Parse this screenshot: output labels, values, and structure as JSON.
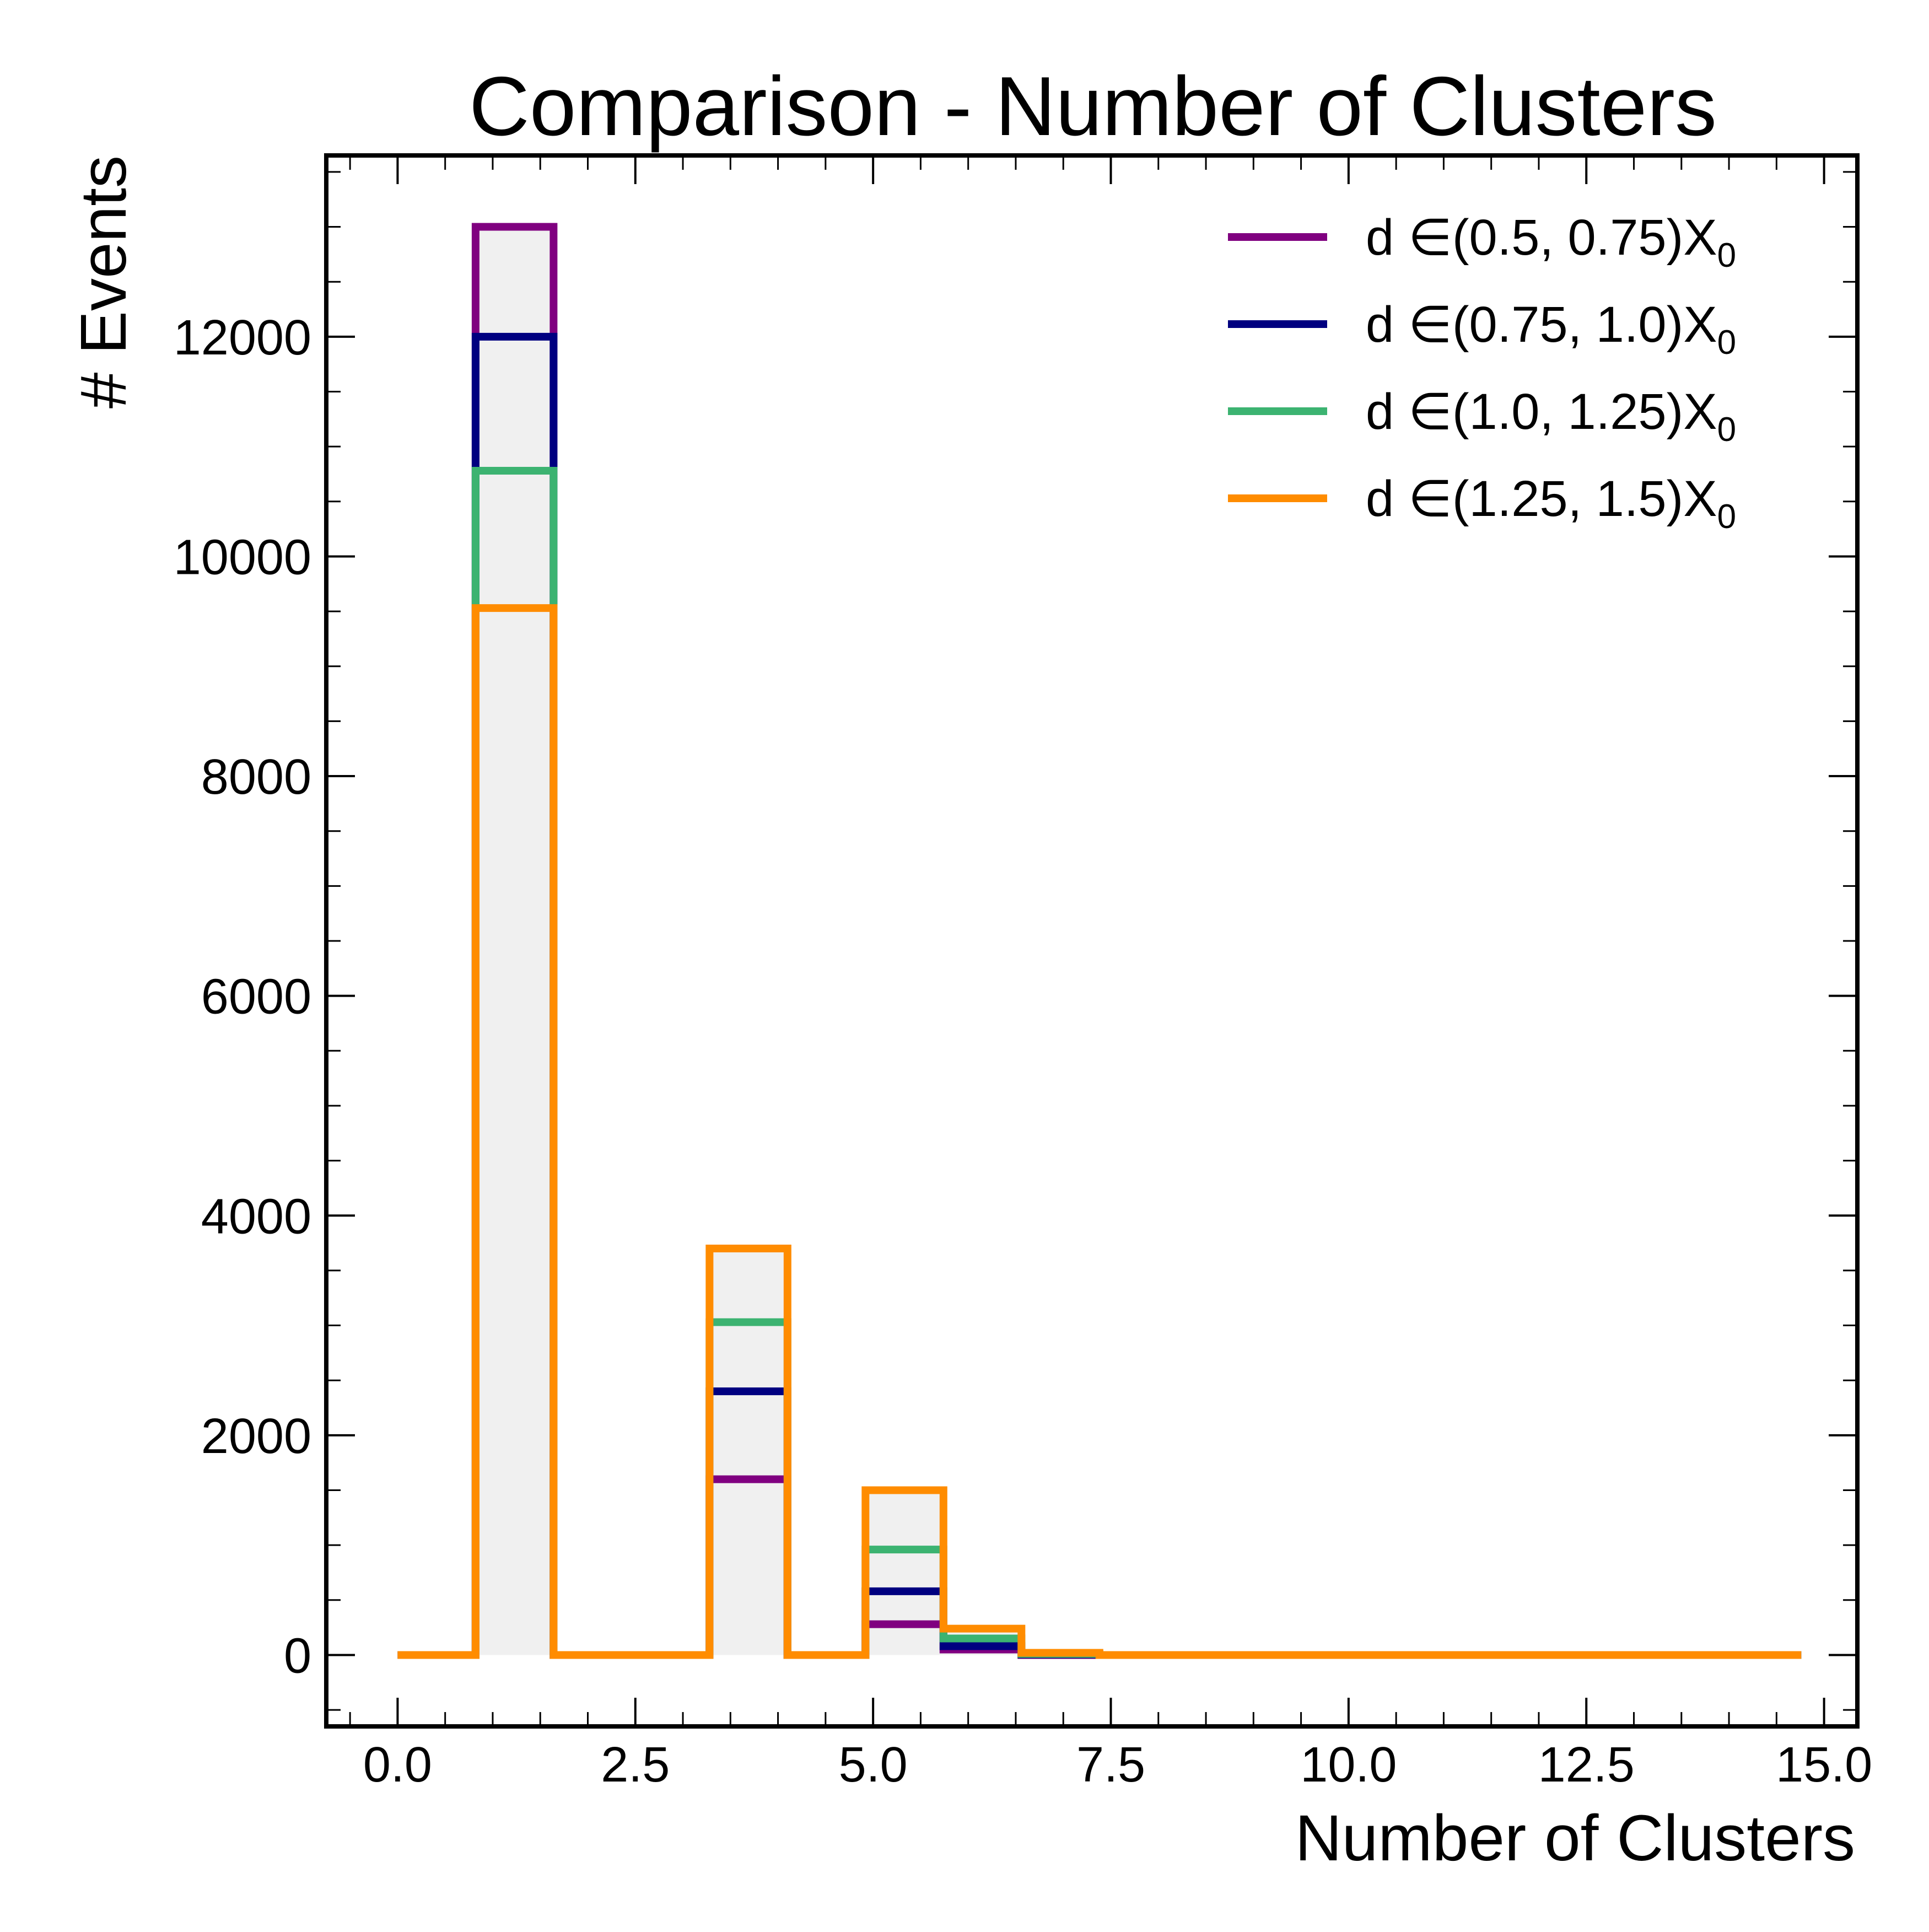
{
  "chart_data": {
    "type": "histogram-step",
    "title": "Comparison - Number of Clusters",
    "xlabel": "Number of Clusters",
    "ylabel": "# Events",
    "xlim": [
      -0.75,
      15.35
    ],
    "ylim": [
      -650,
      13650
    ],
    "x_ticks": [
      "0.0",
      "2.5",
      "5.0",
      "7.5",
      "10.0",
      "12.5",
      "15.0"
    ],
    "x_tick_values": [
      0,
      2.5,
      5,
      7.5,
      10,
      12.5,
      15
    ],
    "y_ticks": [
      "0",
      "2000",
      "4000",
      "6000",
      "8000",
      "10000",
      "12000"
    ],
    "y_tick_values": [
      0,
      2000,
      4000,
      6000,
      8000,
      10000,
      12000
    ],
    "bins_start": 0,
    "bin_width": 0.82,
    "n_bins": 18,
    "legend_position": "top-right",
    "series": [
      {
        "name_prefix": "d ∈(0.5, 0.75)X",
        "name_sub": "0",
        "color": "#800080",
        "values": [
          0,
          13000,
          0,
          0,
          1600,
          0,
          280,
          50,
          0,
          0,
          0,
          0,
          0,
          0,
          0,
          0,
          0,
          0
        ]
      },
      {
        "name_prefix": "d ∈(0.75, 1.0)X",
        "name_sub": "0",
        "color": "#000080",
        "values": [
          0,
          12000,
          0,
          0,
          2400,
          0,
          580,
          80,
          5,
          0,
          0,
          0,
          0,
          0,
          0,
          0,
          0,
          0
        ]
      },
      {
        "name_prefix": "d ∈(1.0, 1.25)X",
        "name_sub": "0",
        "color": "#3cb371",
        "values": [
          0,
          10780,
          0,
          0,
          3030,
          0,
          960,
          150,
          10,
          0,
          0,
          0,
          0,
          0,
          0,
          0,
          0,
          0
        ]
      },
      {
        "name_prefix": "d ∈(1.25, 1.5)X",
        "name_sub": "0",
        "color": "#ff8c00",
        "values": [
          0,
          9530,
          0,
          0,
          3700,
          0,
          1500,
          240,
          20,
          0,
          0,
          0,
          0,
          0,
          0,
          0,
          0,
          0
        ]
      }
    ]
  }
}
